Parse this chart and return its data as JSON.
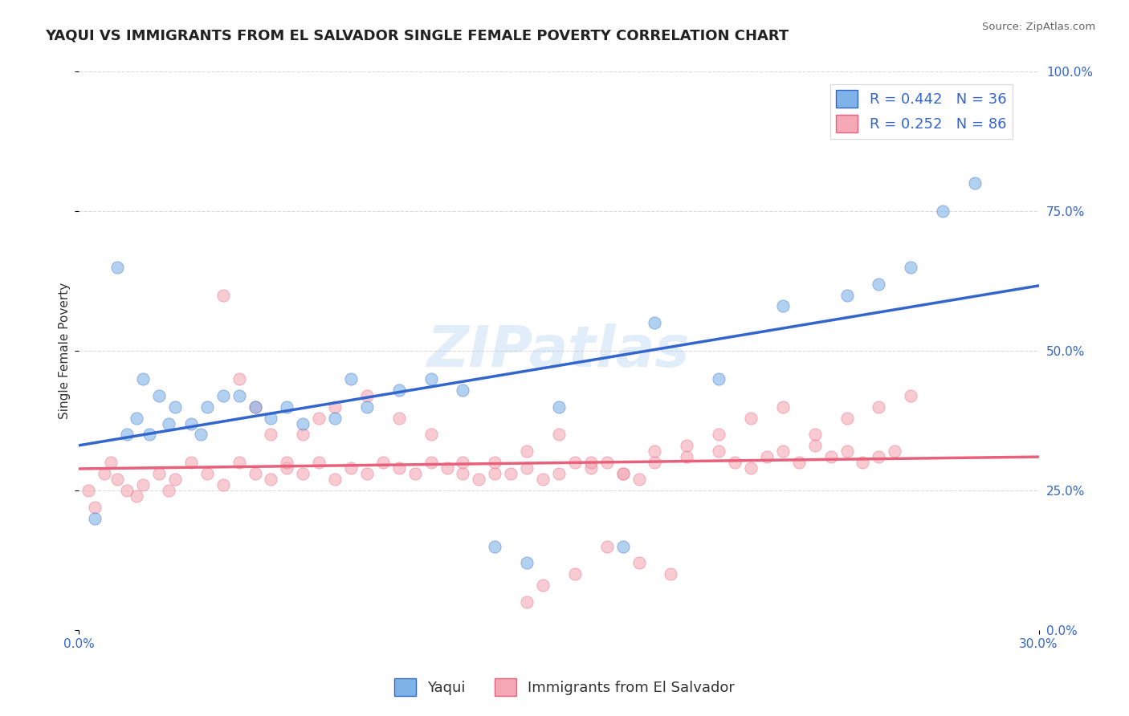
{
  "title": "YAQUI VS IMMIGRANTS FROM EL SALVADOR SINGLE FEMALE POVERTY CORRELATION CHART",
  "source": "Source: ZipAtlas.com",
  "ylabel": "Single Female Poverty",
  "xlim": [
    0.0,
    30.0
  ],
  "ylim": [
    0.0,
    100.0
  ],
  "yticks_right": [
    0.0,
    25.0,
    50.0,
    75.0,
    100.0
  ],
  "ytick_labels_right": [
    "0.0%",
    "25.0%",
    "50.0%",
    "75.0%",
    "100.0%"
  ],
  "blue_R": 0.442,
  "blue_N": 36,
  "pink_R": 0.252,
  "pink_N": 86,
  "blue_color": "#7FB3E8",
  "pink_color": "#F4A7B5",
  "blue_line_color": "#3366CC",
  "pink_line_color": "#E8607A",
  "legend_label_blue": "Yaqui",
  "legend_label_pink": "Immigrants from El Salvador",
  "watermark": "ZIPatlas",
  "background_color": "#FFFFFF",
  "blue_scatter_x": [
    0.5,
    1.2,
    2.0,
    1.5,
    3.0,
    2.5,
    1.8,
    2.2,
    3.5,
    4.0,
    3.8,
    2.8,
    5.0,
    4.5,
    6.0,
    5.5,
    7.0,
    6.5,
    8.0,
    8.5,
    9.0,
    10.0,
    11.0,
    12.0,
    13.0,
    14.0,
    15.0,
    17.0,
    18.0,
    20.0,
    22.0,
    24.0,
    25.0,
    26.0,
    27.0,
    28.0
  ],
  "blue_scatter_y": [
    20.0,
    65.0,
    45.0,
    35.0,
    40.0,
    42.0,
    38.0,
    35.0,
    37.0,
    40.0,
    35.0,
    37.0,
    42.0,
    42.0,
    38.0,
    40.0,
    37.0,
    40.0,
    38.0,
    45.0,
    40.0,
    43.0,
    45.0,
    43.0,
    15.0,
    12.0,
    40.0,
    15.0,
    55.0,
    45.0,
    58.0,
    60.0,
    62.0,
    65.0,
    75.0,
    80.0
  ],
  "pink_scatter_x": [
    0.3,
    0.5,
    0.8,
    1.0,
    1.5,
    1.2,
    2.0,
    1.8,
    2.5,
    3.0,
    2.8,
    3.5,
    4.0,
    4.5,
    5.0,
    5.5,
    6.0,
    6.5,
    7.0,
    7.5,
    8.0,
    8.5,
    9.0,
    9.5,
    10.0,
    10.5,
    11.0,
    11.5,
    12.0,
    12.5,
    13.0,
    13.5,
    14.0,
    14.5,
    15.0,
    15.5,
    16.0,
    16.5,
    17.0,
    17.5,
    18.0,
    19.0,
    20.0,
    20.5,
    21.0,
    21.5,
    22.0,
    22.5,
    23.0,
    23.5,
    24.0,
    24.5,
    25.0,
    25.5,
    14.0,
    14.5,
    15.5,
    16.5,
    17.5,
    18.5,
    4.5,
    5.0,
    5.5,
    6.0,
    6.5,
    7.0,
    7.5,
    8.0,
    9.0,
    10.0,
    11.0,
    12.0,
    13.0,
    14.0,
    15.0,
    16.0,
    17.0,
    18.0,
    19.0,
    20.0,
    21.0,
    22.0,
    23.0,
    24.0,
    25.0,
    26.0
  ],
  "pink_scatter_y": [
    25.0,
    22.0,
    28.0,
    30.0,
    25.0,
    27.0,
    26.0,
    24.0,
    28.0,
    27.0,
    25.0,
    30.0,
    28.0,
    26.0,
    30.0,
    28.0,
    27.0,
    29.0,
    28.0,
    30.0,
    27.0,
    29.0,
    28.0,
    30.0,
    29.0,
    28.0,
    30.0,
    29.0,
    28.0,
    27.0,
    30.0,
    28.0,
    29.0,
    27.0,
    28.0,
    30.0,
    29.0,
    30.0,
    28.0,
    27.0,
    30.0,
    31.0,
    32.0,
    30.0,
    29.0,
    31.0,
    32.0,
    30.0,
    33.0,
    31.0,
    32.0,
    30.0,
    31.0,
    32.0,
    5.0,
    8.0,
    10.0,
    15.0,
    12.0,
    10.0,
    60.0,
    45.0,
    40.0,
    35.0,
    30.0,
    35.0,
    38.0,
    40.0,
    42.0,
    38.0,
    35.0,
    30.0,
    28.0,
    32.0,
    35.0,
    30.0,
    28.0,
    32.0,
    33.0,
    35.0,
    38.0,
    40.0,
    35.0,
    38.0,
    40.0,
    42.0
  ],
  "grid_color": "#CCCCCC",
  "title_fontsize": 13,
  "axis_label_fontsize": 11,
  "tick_fontsize": 11,
  "legend_fontsize": 13
}
